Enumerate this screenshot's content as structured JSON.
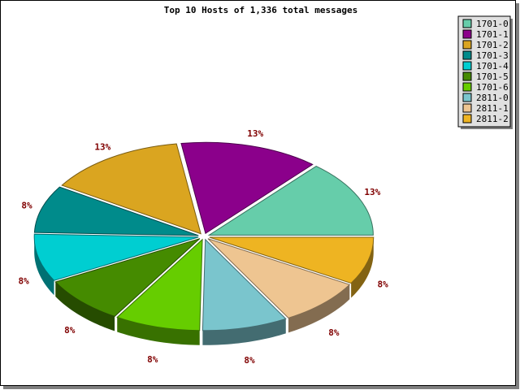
{
  "chart_data": {
    "type": "pie",
    "title": "Top 10 Hosts of 1,336 total messages",
    "legend_placement": "top-right",
    "three_d": true,
    "slices": [
      {
        "label": "1701-0",
        "percent_label": "13%",
        "value": 13,
        "color": "#66cdaa"
      },
      {
        "label": "1701-1",
        "percent_label": "13%",
        "value": 13,
        "color": "#8b008b"
      },
      {
        "label": "1701-2",
        "percent_label": "13%",
        "value": 13,
        "color": "#daa520"
      },
      {
        "label": "1701-3",
        "percent_label": "8%",
        "value": 8,
        "color": "#008b8b"
      },
      {
        "label": "1701-4",
        "percent_label": "8%",
        "value": 8,
        "color": "#00ced1"
      },
      {
        "label": "1701-5",
        "percent_label": "8%",
        "value": 8,
        "color": "#458b00"
      },
      {
        "label": "1701-6",
        "percent_label": "8%",
        "value": 8,
        "color": "#66cd00"
      },
      {
        "label": "2811-0",
        "percent_label": "8%",
        "value": 8,
        "color": "#7ac5cd"
      },
      {
        "label": "2811-1",
        "percent_label": "8%",
        "value": 8,
        "color": "#eec591"
      },
      {
        "label": "2811-2",
        "percent_label": "8%",
        "value": 8,
        "color": "#eeb422"
      }
    ]
  }
}
